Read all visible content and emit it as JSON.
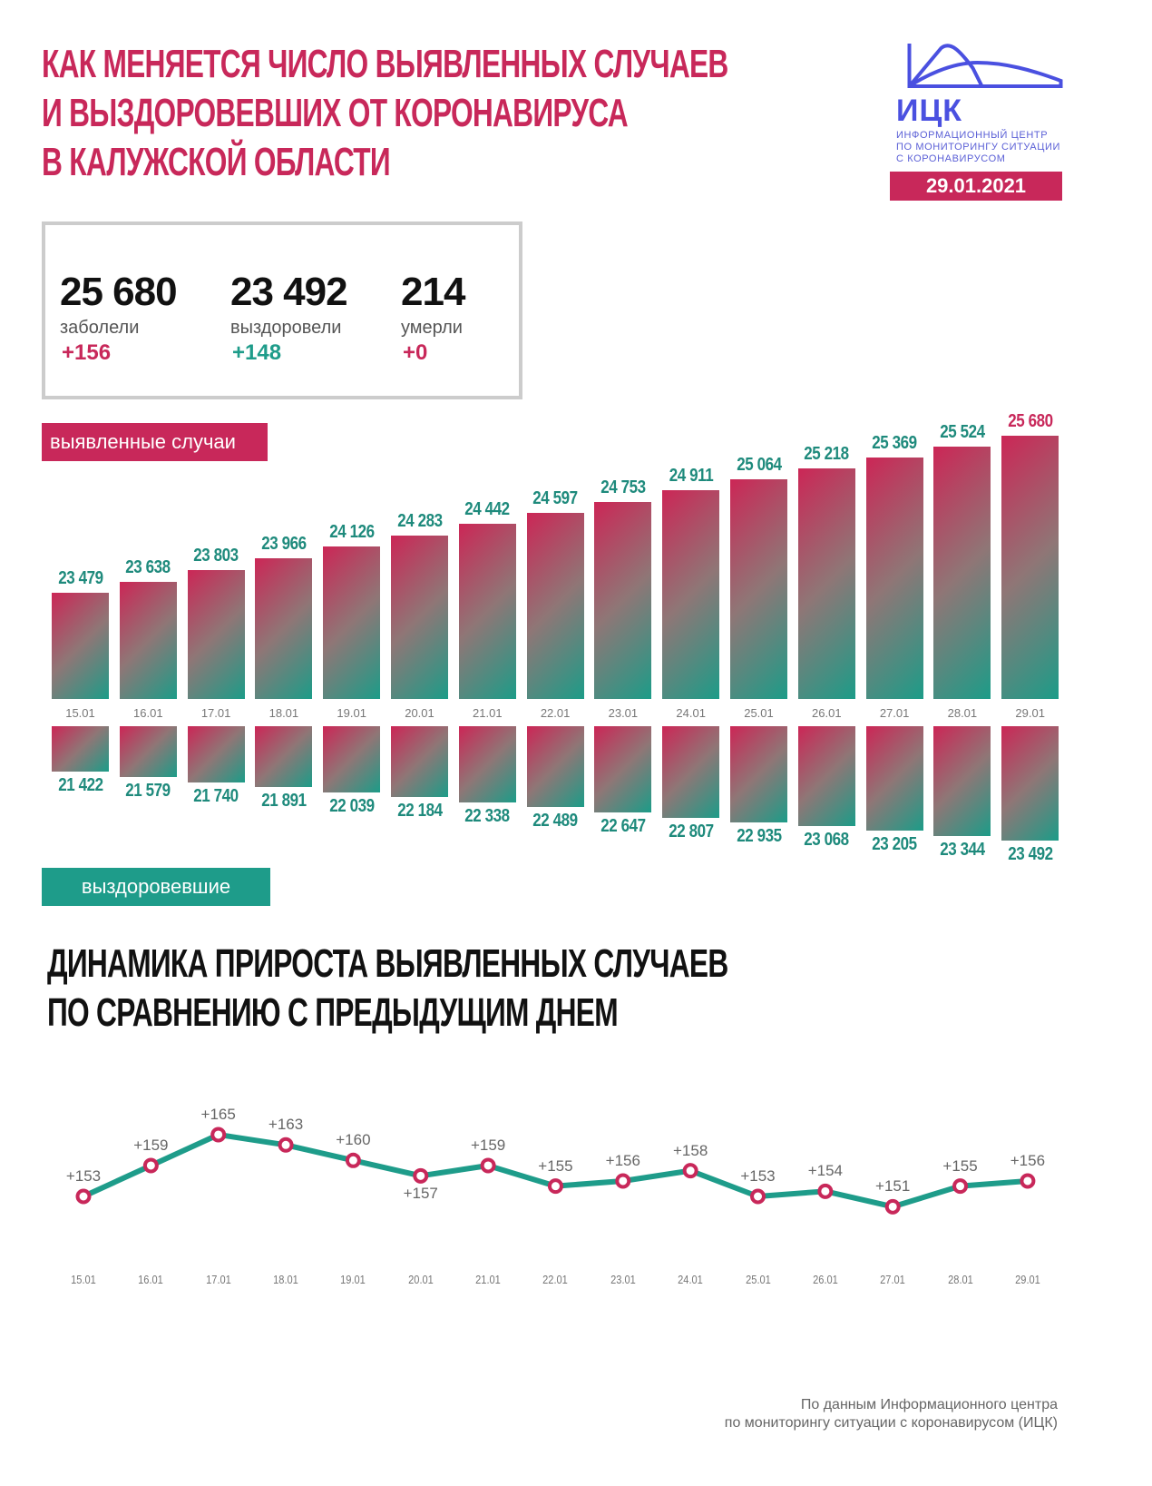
{
  "header": {
    "title_lines": [
      "КАК МЕНЯЕТСЯ ЧИСЛО ВЫЯВЛЕННЫХ СЛУЧАЕВ",
      "И ВЫЗДОРОВЕВШИХ ОТ КОРОНАВИРУСА",
      "В КАЛУЖСКОЙ ОБЛАСТИ"
    ],
    "logo": {
      "abbr": "ИЦК",
      "text_lines": [
        "ИНФОРМАЦИОННЫЙ ЦЕНТР",
        "ПО МОНИТОРИНГУ СИТУАЦИИ",
        "С КОРОНАВИРУСОМ"
      ],
      "color": "#4a50e0"
    },
    "date": "29.01.2021"
  },
  "stats": [
    {
      "value": "25 680",
      "label": "заболели",
      "delta": "+156",
      "delta_color": "#c8285a"
    },
    {
      "value": "23 492",
      "label": "выздоровели",
      "delta": "+148",
      "delta_color": "#1e9c8a"
    },
    {
      "value": "214",
      "label": "умерли",
      "delta": "+0",
      "delta_color": "#c8285a"
    }
  ],
  "tags": {
    "cases": "выявленные случаи",
    "recovered": "выздоровевшие"
  },
  "subtitle_lines": [
    "ДИНАМИКА ПРИРОСТА ВЫЯВЛЕННЫХ СЛУЧАЕВ",
    "ПО СРАВНЕНИЮ С ПРЕДЫДУЩИМ ДНЕМ"
  ],
  "footer_lines": [
    "По данным Информационного центра",
    "по мониторингу ситуации с коронавирусом (ИЦК)"
  ],
  "colors": {
    "accent_pink": "#c8285a",
    "accent_teal": "#1e9c8a",
    "label_teal": "#1e8a7c"
  },
  "chart_data": [
    {
      "type": "bar",
      "title": "выявленные случаи",
      "categories": [
        "15.01",
        "16.01",
        "17.01",
        "18.01",
        "19.01",
        "20.01",
        "21.01",
        "22.01",
        "23.01",
        "24.01",
        "25.01",
        "26.01",
        "27.01",
        "28.01",
        "29.01"
      ],
      "values": [
        23479,
        23638,
        23803,
        23966,
        24126,
        24283,
        24442,
        24597,
        24753,
        24911,
        25064,
        25218,
        25369,
        25524,
        25680
      ],
      "labels": [
        "23 479",
        "23 638",
        "23 803",
        "23 966",
        "24 126",
        "24 283",
        "24 442",
        "24 597",
        "24 753",
        "24 911",
        "25 064",
        "25 218",
        "25 369",
        "25 524",
        "25 680"
      ],
      "xlabel": "",
      "ylabel": "",
      "grid": false
    },
    {
      "type": "bar",
      "title": "выздоровевшие",
      "orientation": "downward",
      "categories": [
        "15.01",
        "16.01",
        "17.01",
        "18.01",
        "19.01",
        "20.01",
        "21.01",
        "22.01",
        "23.01",
        "24.01",
        "25.01",
        "26.01",
        "27.01",
        "28.01",
        "29.01"
      ],
      "values": [
        21422,
        21579,
        21740,
        21891,
        22039,
        22184,
        22338,
        22489,
        22647,
        22807,
        22935,
        23068,
        23205,
        23344,
        23492
      ],
      "labels": [
        "21 422",
        "21 579",
        "21 740",
        "21 891",
        "22 039",
        "22 184",
        "22 338",
        "22 489",
        "22 647",
        "22 807",
        "22 935",
        "23 068",
        "23 205",
        "23 344",
        "23 492"
      ],
      "xlabel": "",
      "ylabel": "",
      "grid": false
    },
    {
      "type": "line",
      "title": "ДИНАМИКА ПРИРОСТА ВЫЯВЛЕННЫХ СЛУЧАЕВ ПО СРАВНЕНИЮ С ПРЕДЫДУЩИМ ДНЕМ",
      "x": [
        "15.01",
        "16.01",
        "17.01",
        "18.01",
        "19.01",
        "20.01",
        "21.01",
        "22.01",
        "23.01",
        "24.01",
        "25.01",
        "26.01",
        "27.01",
        "28.01",
        "29.01"
      ],
      "values": [
        153,
        159,
        165,
        163,
        160,
        157,
        159,
        155,
        156,
        158,
        153,
        154,
        151,
        155,
        156
      ],
      "labels": [
        "+153",
        "+159",
        "+165",
        "+163",
        "+160",
        "+157",
        "+159",
        "+155",
        "+156",
        "+158",
        "+153",
        "+154",
        "+151",
        "+155",
        "+156"
      ],
      "line_color": "#1e9c8a",
      "marker_color": "#c8285a",
      "grid": false
    }
  ]
}
